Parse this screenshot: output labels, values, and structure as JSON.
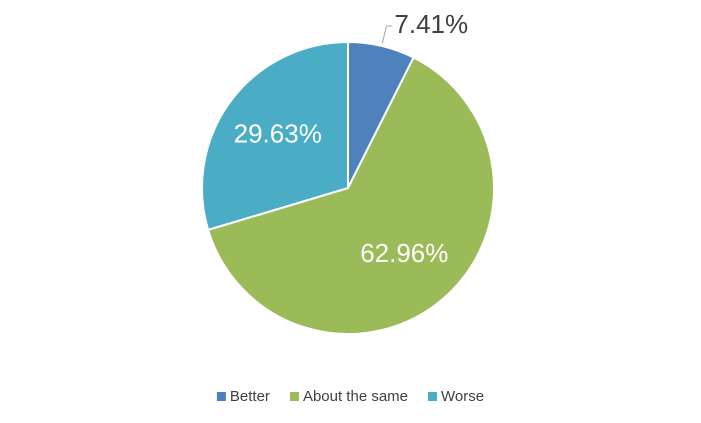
{
  "chart_data": {
    "type": "pie",
    "categories": [
      "Better",
      "About the same",
      "Worse"
    ],
    "values": [
      7.41,
      62.96,
      29.63
    ],
    "value_labels": [
      "7.41%",
      "62.96%",
      "29.63%"
    ],
    "colors": [
      "#4f81bd",
      "#9bbb59",
      "#4bacc6"
    ],
    "legend": "bottom"
  }
}
